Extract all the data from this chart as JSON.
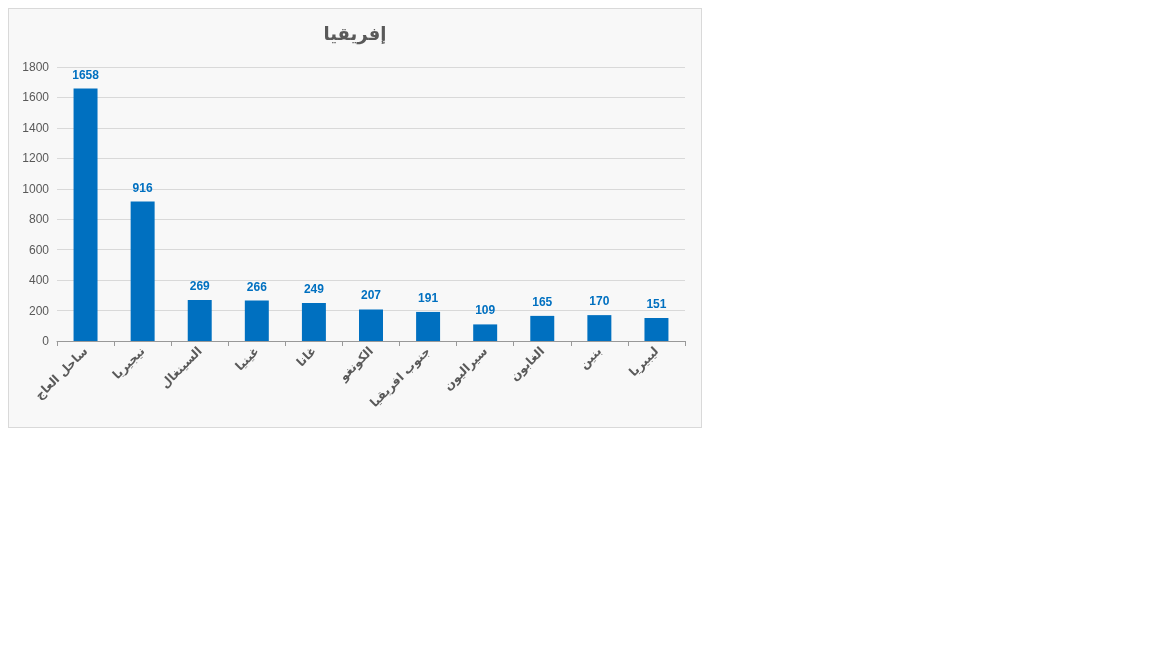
{
  "chart_data": {
    "type": "bar",
    "title": "إفريقيا",
    "categories": [
      "ساحل العاج",
      "نيجيريا",
      "السينغال",
      "غينيا",
      "غانا",
      "الكونغو",
      "جنوب افريقيا",
      "سيراليون",
      "الغابون",
      "بنين",
      "ليبيريا"
    ],
    "values": [
      1658,
      916,
      269,
      266,
      249,
      207,
      191,
      109,
      165,
      170,
      151
    ],
    "color": "#0070c0",
    "ylim": [
      0,
      1800
    ],
    "yticks": [
      0,
      200,
      400,
      600,
      800,
      1000,
      1200,
      1400,
      1600,
      1800
    ],
    "grid": "y",
    "data_labels": true
  }
}
